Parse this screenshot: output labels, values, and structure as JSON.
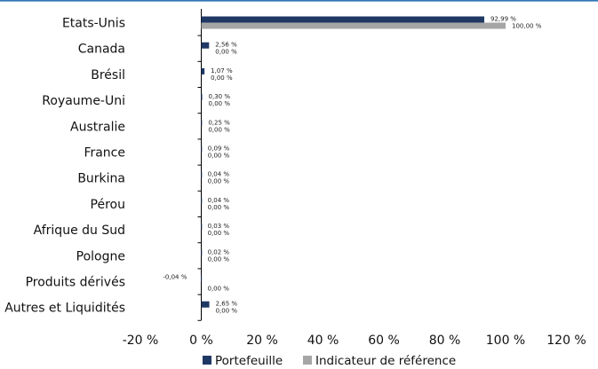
{
  "chart_data": {
    "type": "bar",
    "orientation": "horizontal",
    "categories": [
      "Etats-Unis",
      "Canada",
      "Brésil",
      "Royaume-Uni",
      "Australie",
      "France",
      "Burkina",
      "Pérou",
      "Afrique du Sud",
      "Pologne",
      "Produits dérivés",
      "Autres et Liquidités"
    ],
    "series": [
      {
        "name": "Portefeuille",
        "color": "#1f3864",
        "values": [
          92.99,
          2.56,
          1.07,
          0.3,
          0.25,
          0.09,
          0.04,
          0.04,
          0.03,
          0.02,
          -0.04,
          2.65
        ],
        "labels": [
          "92,99 %",
          "2,56 %",
          "1,07 %",
          "0,30 %",
          "0,25 %",
          "0,09 %",
          "0,04 %",
          "0,04 %",
          "0,03 %",
          "0,02 %",
          "-0,04 %",
          "2,65 %"
        ]
      },
      {
        "name": "Indicateur de référence",
        "color": "#a6a6a6",
        "values": [
          100.0,
          0,
          0,
          0,
          0,
          0,
          0,
          0,
          0,
          0,
          0,
          0
        ],
        "labels": [
          "100,00 %",
          "0,00 %",
          "0,00 %",
          "0,00 %",
          "0,00 %",
          "0,00 %",
          "0,00 %",
          "0,00 %",
          "0,00 %",
          "0,00 %",
          "0,00 %",
          "0,00 %"
        ]
      }
    ],
    "xlim": [
      -20,
      120
    ],
    "xticks": [
      -20,
      0,
      20,
      40,
      60,
      80,
      100,
      120
    ],
    "xtick_labels": [
      "-20 %",
      "0 %",
      "20 %",
      "40 %",
      "60 %",
      "80 %",
      "100 %",
      "120 %"
    ],
    "grid": false,
    "legend_position": "bottom-center",
    "top_rule_color": "#2e75b6"
  }
}
